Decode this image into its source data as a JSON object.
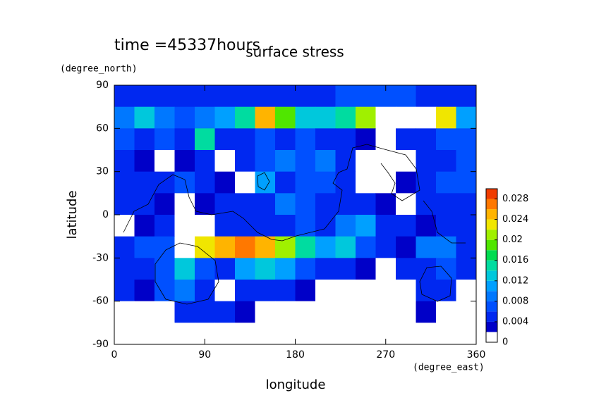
{
  "chart_data": {
    "type": "contour",
    "title": "surface stress",
    "annotation": "time =45337hours",
    "x_label": "longitude",
    "x_unit": "(degree_east)",
    "y_label": "latitude",
    "y_unit": "(degree_north)",
    "xlim": [
      0,
      360
    ],
    "xticks": [
      0,
      90,
      180,
      270,
      360
    ],
    "ylim": [
      -90,
      90
    ],
    "yticks": [
      -90,
      -60,
      -30,
      0,
      30,
      60,
      90
    ],
    "x": [
      10,
      30,
      50,
      70,
      90,
      110,
      130,
      150,
      170,
      190,
      210,
      230,
      250,
      270,
      290,
      310,
      330,
      350
    ],
    "y": [
      82.5,
      67.5,
      52.5,
      37.5,
      22.5,
      7.5,
      -7.5,
      -22.5,
      -37.5,
      -52.5,
      -67.5,
      -82.5
    ],
    "z": [
      [
        0.004,
        0.004,
        0.004,
        0.004,
        0.004,
        0.004,
        0.004,
        0.004,
        0.004,
        0.004,
        0.004,
        0.006,
        0.006,
        0.006,
        0.006,
        0.004,
        0.004,
        0.004
      ],
      [
        0.008,
        0.012,
        0.008,
        0.006,
        0.008,
        0.01,
        0.014,
        0.024,
        0.018,
        0.012,
        0.012,
        0.014,
        0.02,
        0.03,
        0.03,
        0.03,
        0.022,
        0.01
      ],
      [
        0.006,
        0.004,
        0.006,
        0.004,
        0.014,
        0.004,
        0.004,
        0.006,
        0.004,
        0.006,
        0.004,
        0.004,
        0.002,
        0,
        0.004,
        0.004,
        0.006,
        0.006
      ],
      [
        0.004,
        0.002,
        0,
        0.002,
        0.004,
        0,
        0.004,
        0.006,
        0.008,
        0.006,
        0.008,
        0.004,
        0,
        0,
        0,
        0.004,
        0.004,
        0.006
      ],
      [
        0.004,
        0.004,
        0.004,
        0.006,
        0.004,
        0.002,
        0,
        0.01,
        0.004,
        0.006,
        0.006,
        0.004,
        0,
        0,
        0.002,
        0.004,
        0.006,
        0.006
      ],
      [
        0.004,
        0.004,
        0.002,
        0,
        0.002,
        0.004,
        0.004,
        0.004,
        0.008,
        0.006,
        0.004,
        0.004,
        0.004,
        0.002,
        0,
        0.004,
        0.004,
        0.004
      ],
      [
        0,
        0.002,
        0.004,
        0,
        0,
        0.004,
        0.004,
        0.004,
        0.004,
        0.006,
        0.004,
        0.008,
        0.01,
        0.004,
        0.004,
        0.002,
        0.004,
        0.004
      ],
      [
        0.004,
        0.006,
        0.006,
        0.03,
        0.022,
        0.024,
        0.026,
        0.024,
        0.02,
        0.014,
        0.01,
        0.012,
        0.006,
        0.004,
        0.002,
        0.008,
        0.008,
        0.004
      ],
      [
        0.004,
        0.004,
        0.006,
        0.012,
        0.006,
        0.004,
        0.01,
        0.012,
        0.01,
        0.006,
        0.004,
        0.004,
        0.002,
        0,
        0.004,
        0.004,
        0.006,
        0.004
      ],
      [
        0.004,
        0.002,
        0.006,
        0.008,
        0.004,
        0,
        0.004,
        0.004,
        0.004,
        0.002,
        0,
        0,
        0,
        0,
        0,
        0.004,
        0.004,
        0
      ],
      [
        0,
        0,
        0,
        0.004,
        0.004,
        0.004,
        0.002,
        0,
        0,
        0,
        0,
        0,
        0,
        0,
        0,
        0.002,
        0,
        0
      ],
      [
        0,
        0,
        0,
        0,
        0,
        0,
        0,
        0,
        0,
        0,
        0,
        0,
        0,
        0,
        0,
        0,
        0,
        0
      ]
    ],
    "levels": [
      0,
      0.002,
      0.004,
      0.006,
      0.008,
      0.01,
      0.012,
      0.014,
      0.016,
      0.018,
      0.02,
      0.022,
      0.024,
      0.026,
      0.028,
      0.03
    ],
    "colors": [
      "#ffffff",
      "#0000c8",
      "#0028f0",
      "#0050ff",
      "#0078ff",
      "#00a0ff",
      "#00c8dc",
      "#00dca0",
      "#00dc50",
      "#50e600",
      "#a0f000",
      "#f0e600",
      "#ffb400",
      "#ff7800",
      "#f03c00"
    ],
    "over_color": "#ffffff",
    "colorbar_ticks": [
      0,
      0.004,
      0.008,
      0.012,
      0.016,
      0.02,
      0.024,
      0.028
    ]
  }
}
